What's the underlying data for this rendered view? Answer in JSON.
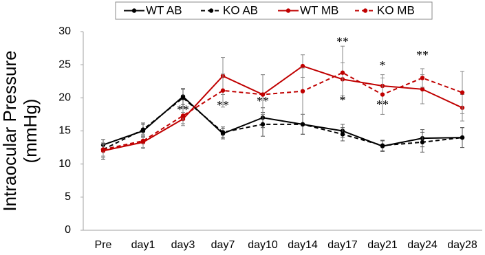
{
  "chart_data": {
    "type": "line",
    "y_label": [
      "Intraocular Pressure",
      "(mmHg)"
    ],
    "categories": [
      "Pre",
      "day1",
      "day3",
      "day7",
      "day10",
      "day14",
      "day17",
      "day21",
      "day24",
      "day28"
    ],
    "ylim": [
      0,
      30
    ],
    "yticks": [
      0,
      5,
      10,
      15,
      20,
      25,
      30
    ],
    "series": [
      {
        "name": "WT AB",
        "color": "#000000",
        "dashed": false,
        "values": [
          12.9,
          15,
          20.2,
          14.6,
          17,
          16,
          15,
          12.7,
          13.9,
          14
        ],
        "errors": [
          0.8,
          1,
          1.2,
          0.8,
          1.5,
          1.5,
          1,
          0.8,
          1.3,
          1.5
        ]
      },
      {
        "name": "KO AB",
        "color": "#000000",
        "dashed": true,
        "values": [
          12.2,
          15.2,
          20,
          14.8,
          16,
          16,
          14.5,
          12.8,
          13.3,
          14
        ],
        "errors": [
          1.5,
          1,
          1.3,
          0.8,
          1.8,
          1.5,
          1,
          0.8,
          1.5,
          1.5
        ]
      },
      {
        "name": "WT MB",
        "color": "#c00000",
        "dashed": false,
        "values": [
          12,
          13.3,
          16.8,
          23.3,
          20.5,
          24.8,
          22.8,
          21.8,
          21.3,
          18.5
        ],
        "errors": [
          1,
          1,
          1,
          2.8,
          3,
          1.7,
          2.5,
          1.2,
          2.2,
          2
        ]
      },
      {
        "name": "KO MB",
        "color": "#c00000",
        "dashed": true,
        "values": [
          12.2,
          13.5,
          17.3,
          21.1,
          20.5,
          21,
          23.8,
          20.5,
          23,
          20.8
        ],
        "errors": [
          1,
          1,
          1.2,
          2.5,
          3,
          3.5,
          4,
          3,
          1.4,
          3.2
        ]
      }
    ],
    "annotations": [
      {
        "text": "**",
        "x": "day3",
        "y": 18
      },
      {
        "text": "**",
        "x": "day7",
        "y": 18.7
      },
      {
        "text": "**",
        "x": "day10",
        "y": 19.3
      },
      {
        "text": "**",
        "x": "day17",
        "y": 28.3
      },
      {
        "text": "*",
        "x": "day17",
        "y": 19.5
      },
      {
        "text": "*",
        "x": "day21",
        "y": 24.7
      },
      {
        "text": "**",
        "x": "day21",
        "y": 18.8
      },
      {
        "text": "**",
        "x": "day24",
        "y": 26.3
      }
    ],
    "legend": "top"
  }
}
